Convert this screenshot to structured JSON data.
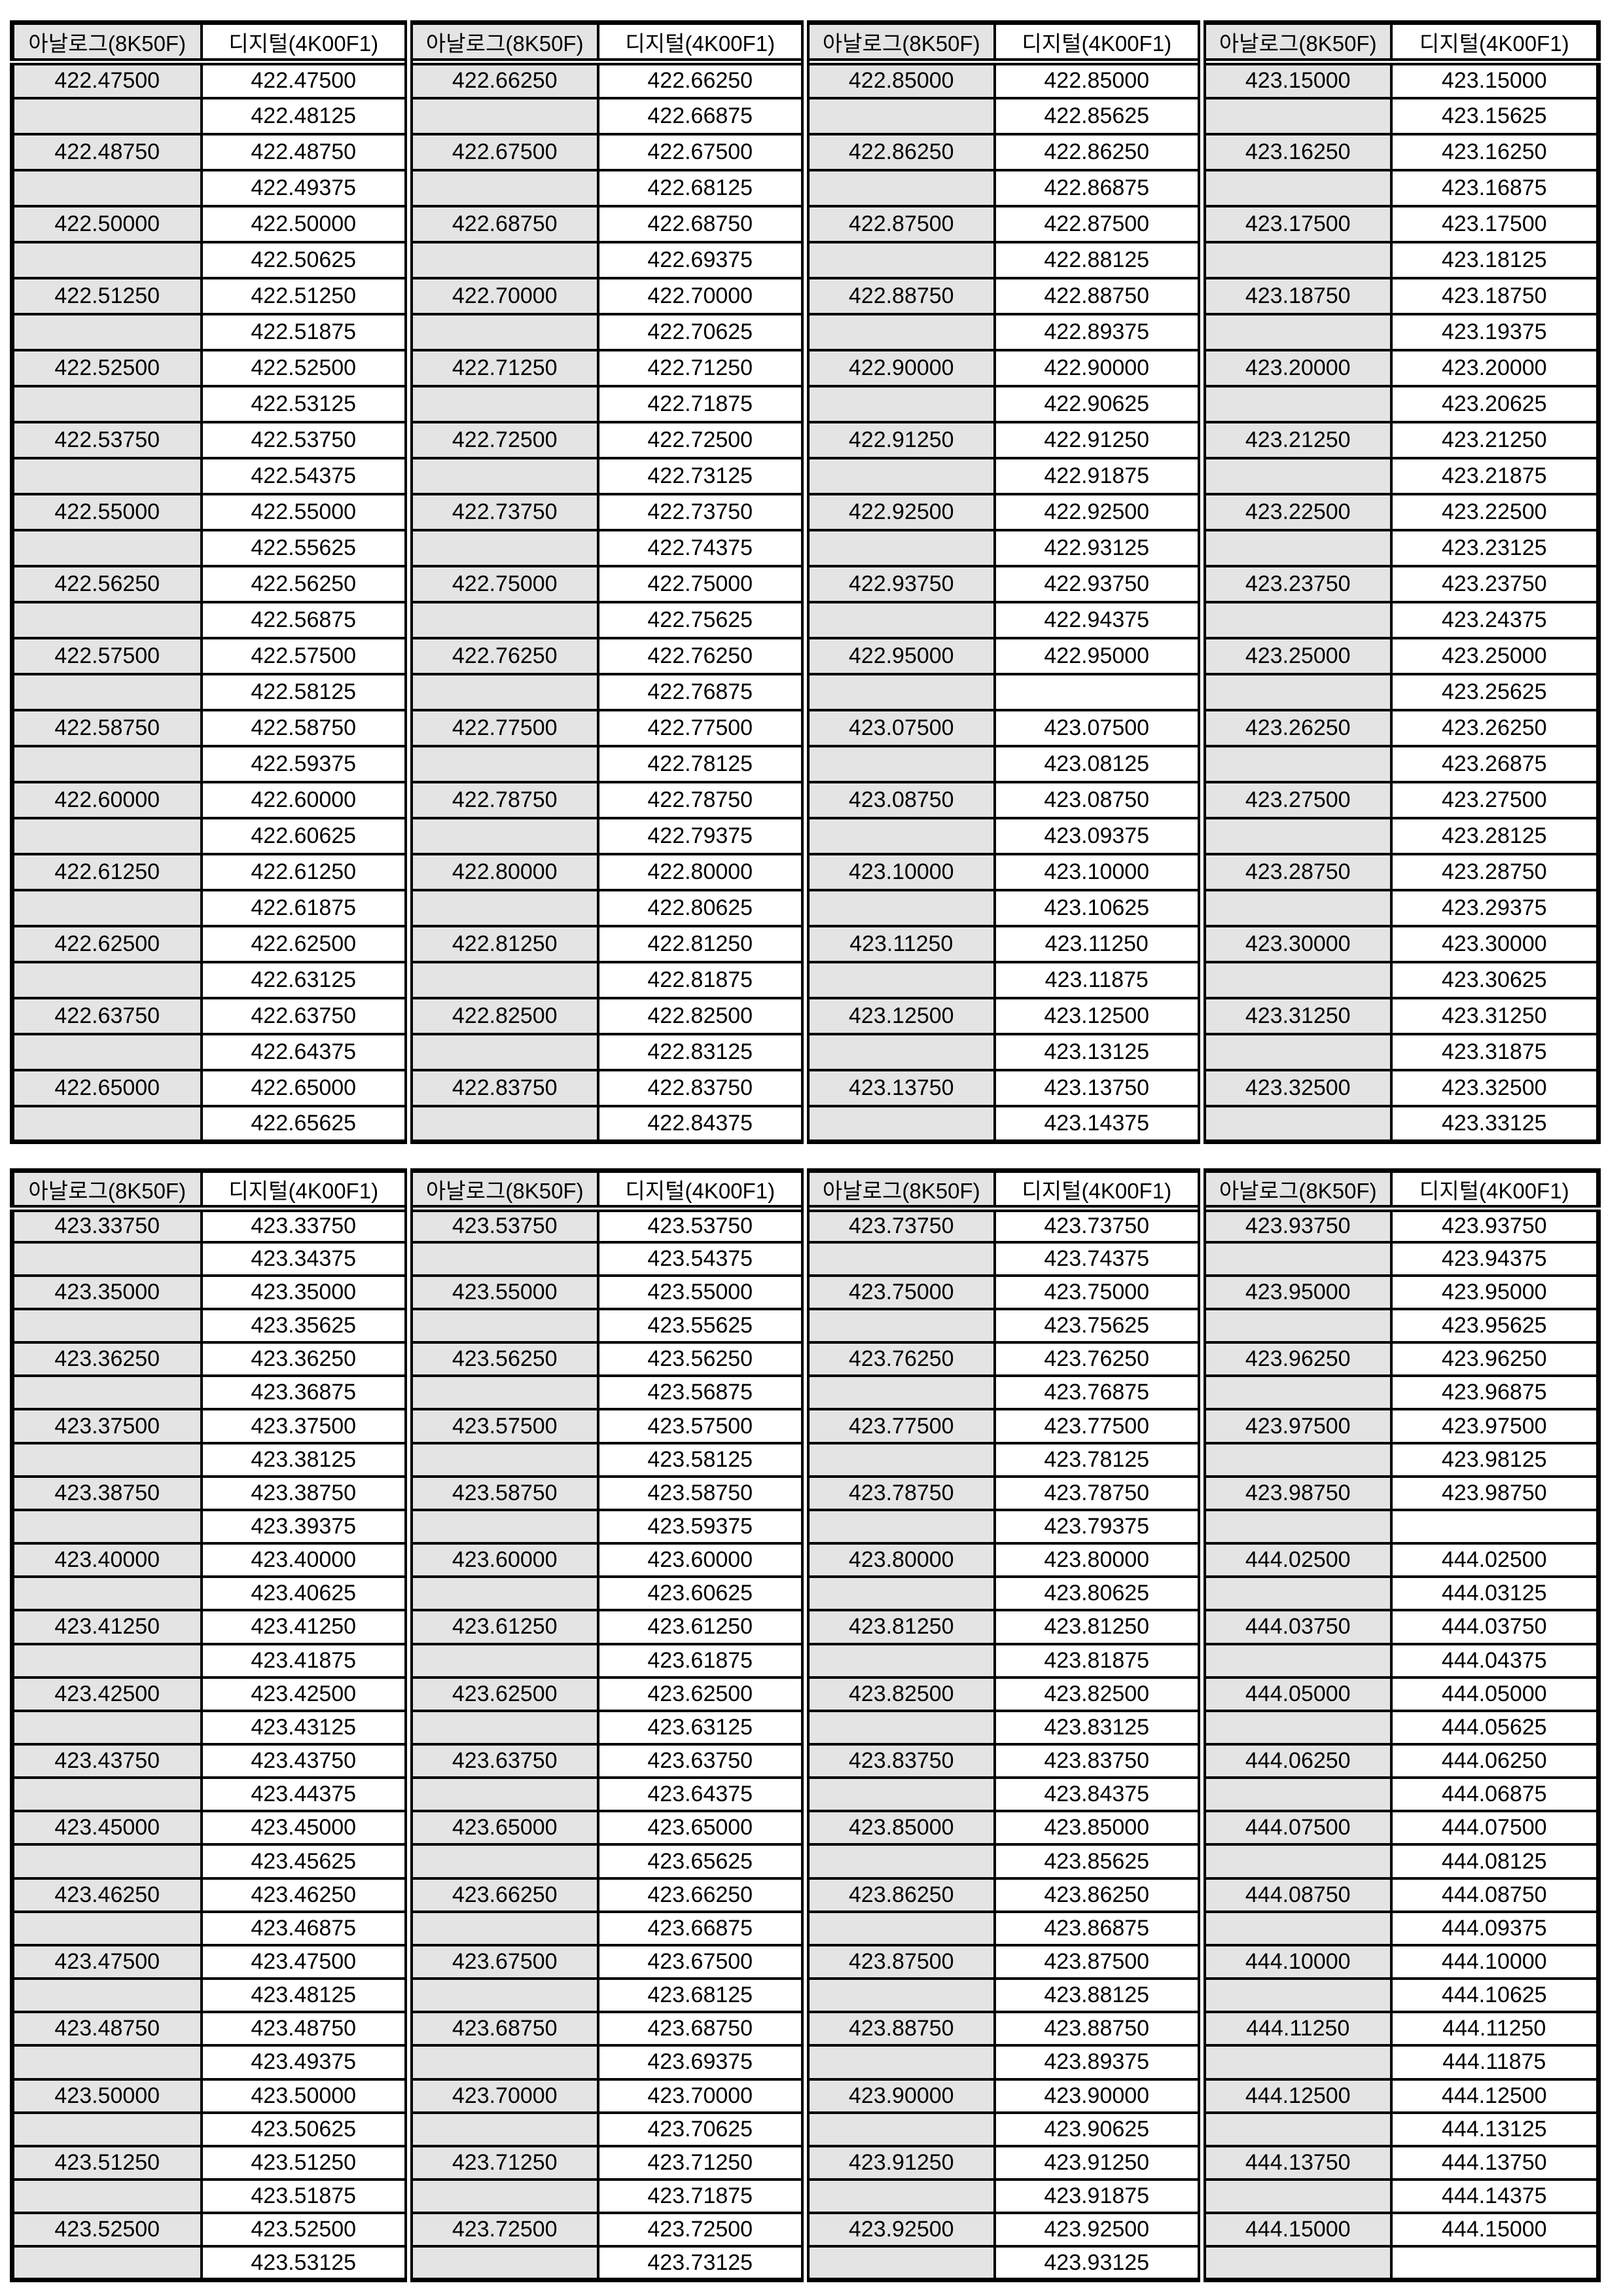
{
  "column_headers": {
    "analog": "아날로그(8K50F)",
    "digital": "디지털(4K00F1)"
  },
  "styles": {
    "analog_bg": "#e4e4e4",
    "digital_bg": "#ffffff",
    "border_color": "#000000",
    "text_color": "#000000"
  },
  "tables": [
    {
      "pairs": [
        {
          "rows": [
            [
              "422.47500",
              "422.47500"
            ],
            [
              "",
              "422.48125"
            ],
            [
              "422.48750",
              "422.48750"
            ],
            [
              "",
              "422.49375"
            ],
            [
              "422.50000",
              "422.50000"
            ],
            [
              "",
              "422.50625"
            ],
            [
              "422.51250",
              "422.51250"
            ],
            [
              "",
              "422.51875"
            ],
            [
              "422.52500",
              "422.52500"
            ],
            [
              "",
              "422.53125"
            ],
            [
              "422.53750",
              "422.53750"
            ],
            [
              "",
              "422.54375"
            ],
            [
              "422.55000",
              "422.55000"
            ],
            [
              "",
              "422.55625"
            ],
            [
              "422.56250",
              "422.56250"
            ],
            [
              "",
              "422.56875"
            ],
            [
              "422.57500",
              "422.57500"
            ],
            [
              "",
              "422.58125"
            ],
            [
              "422.58750",
              "422.58750"
            ],
            [
              "",
              "422.59375"
            ],
            [
              "422.60000",
              "422.60000"
            ],
            [
              "",
              "422.60625"
            ],
            [
              "422.61250",
              "422.61250"
            ],
            [
              "",
              "422.61875"
            ],
            [
              "422.62500",
              "422.62500"
            ],
            [
              "",
              "422.63125"
            ],
            [
              "422.63750",
              "422.63750"
            ],
            [
              "",
              "422.64375"
            ],
            [
              "422.65000",
              "422.65000"
            ],
            [
              "",
              "422.65625"
            ]
          ]
        },
        {
          "rows": [
            [
              "422.66250",
              "422.66250"
            ],
            [
              "",
              "422.66875"
            ],
            [
              "422.67500",
              "422.67500"
            ],
            [
              "",
              "422.68125"
            ],
            [
              "422.68750",
              "422.68750"
            ],
            [
              "",
              "422.69375"
            ],
            [
              "422.70000",
              "422.70000"
            ],
            [
              "",
              "422.70625"
            ],
            [
              "422.71250",
              "422.71250"
            ],
            [
              "",
              "422.71875"
            ],
            [
              "422.72500",
              "422.72500"
            ],
            [
              "",
              "422.73125"
            ],
            [
              "422.73750",
              "422.73750"
            ],
            [
              "",
              "422.74375"
            ],
            [
              "422.75000",
              "422.75000"
            ],
            [
              "",
              "422.75625"
            ],
            [
              "422.76250",
              "422.76250"
            ],
            [
              "",
              "422.76875"
            ],
            [
              "422.77500",
              "422.77500"
            ],
            [
              "",
              "422.78125"
            ],
            [
              "422.78750",
              "422.78750"
            ],
            [
              "",
              "422.79375"
            ],
            [
              "422.80000",
              "422.80000"
            ],
            [
              "",
              "422.80625"
            ],
            [
              "422.81250",
              "422.81250"
            ],
            [
              "",
              "422.81875"
            ],
            [
              "422.82500",
              "422.82500"
            ],
            [
              "",
              "422.83125"
            ],
            [
              "422.83750",
              "422.83750"
            ],
            [
              "",
              "422.84375"
            ]
          ]
        },
        {
          "rows": [
            [
              "422.85000",
              "422.85000"
            ],
            [
              "",
              "422.85625"
            ],
            [
              "422.86250",
              "422.86250"
            ],
            [
              "",
              "422.86875"
            ],
            [
              "422.87500",
              "422.87500"
            ],
            [
              "",
              "422.88125"
            ],
            [
              "422.88750",
              "422.88750"
            ],
            [
              "",
              "422.89375"
            ],
            [
              "422.90000",
              "422.90000"
            ],
            [
              "",
              "422.90625"
            ],
            [
              "422.91250",
              "422.91250"
            ],
            [
              "",
              "422.91875"
            ],
            [
              "422.92500",
              "422.92500"
            ],
            [
              "",
              "422.93125"
            ],
            [
              "422.93750",
              "422.93750"
            ],
            [
              "",
              "422.94375"
            ],
            [
              "422.95000",
              "422.95000"
            ],
            [
              "",
              ""
            ],
            [
              "423.07500",
              "423.07500"
            ],
            [
              "",
              "423.08125"
            ],
            [
              "423.08750",
              "423.08750"
            ],
            [
              "",
              "423.09375"
            ],
            [
              "423.10000",
              "423.10000"
            ],
            [
              "",
              "423.10625"
            ],
            [
              "423.11250",
              "423.11250"
            ],
            [
              "",
              "423.11875"
            ],
            [
              "423.12500",
              "423.12500"
            ],
            [
              "",
              "423.13125"
            ],
            [
              "423.13750",
              "423.13750"
            ],
            [
              "",
              "423.14375"
            ]
          ]
        },
        {
          "rows": [
            [
              "423.15000",
              "423.15000"
            ],
            [
              "",
              "423.15625"
            ],
            [
              "423.16250",
              "423.16250"
            ],
            [
              "",
              "423.16875"
            ],
            [
              "423.17500",
              "423.17500"
            ],
            [
              "",
              "423.18125"
            ],
            [
              "423.18750",
              "423.18750"
            ],
            [
              "",
              "423.19375"
            ],
            [
              "423.20000",
              "423.20000"
            ],
            [
              "",
              "423.20625"
            ],
            [
              "423.21250",
              "423.21250"
            ],
            [
              "",
              "423.21875"
            ],
            [
              "423.22500",
              "423.22500"
            ],
            [
              "",
              "423.23125"
            ],
            [
              "423.23750",
              "423.23750"
            ],
            [
              "",
              "423.24375"
            ],
            [
              "423.25000",
              "423.25000"
            ],
            [
              "",
              "423.25625"
            ],
            [
              "423.26250",
              "423.26250"
            ],
            [
              "",
              "423.26875"
            ],
            [
              "423.27500",
              "423.27500"
            ],
            [
              "",
              "423.28125"
            ],
            [
              "423.28750",
              "423.28750"
            ],
            [
              "",
              "423.29375"
            ],
            [
              "423.30000",
              "423.30000"
            ],
            [
              "",
              "423.30625"
            ],
            [
              "423.31250",
              "423.31250"
            ],
            [
              "",
              "423.31875"
            ],
            [
              "423.32500",
              "423.32500"
            ],
            [
              "",
              "423.33125"
            ]
          ]
        }
      ]
    },
    {
      "pairs": [
        {
          "rows": [
            [
              "423.33750",
              "423.33750"
            ],
            [
              "",
              "423.34375"
            ],
            [
              "423.35000",
              "423.35000"
            ],
            [
              "",
              "423.35625"
            ],
            [
              "423.36250",
              "423.36250"
            ],
            [
              "",
              "423.36875"
            ],
            [
              "423.37500",
              "423.37500"
            ],
            [
              "",
              "423.38125"
            ],
            [
              "423.38750",
              "423.38750"
            ],
            [
              "",
              "423.39375"
            ],
            [
              "423.40000",
              "423.40000"
            ],
            [
              "",
              "423.40625"
            ],
            [
              "423.41250",
              "423.41250"
            ],
            [
              "",
              "423.41875"
            ],
            [
              "423.42500",
              "423.42500"
            ],
            [
              "",
              "423.43125"
            ],
            [
              "423.43750",
              "423.43750"
            ],
            [
              "",
              "423.44375"
            ],
            [
              "423.45000",
              "423.45000"
            ],
            [
              "",
              "423.45625"
            ],
            [
              "423.46250",
              "423.46250"
            ],
            [
              "",
              "423.46875"
            ],
            [
              "423.47500",
              "423.47500"
            ],
            [
              "",
              "423.48125"
            ],
            [
              "423.48750",
              "423.48750"
            ],
            [
              "",
              "423.49375"
            ],
            [
              "423.50000",
              "423.50000"
            ],
            [
              "",
              "423.50625"
            ],
            [
              "423.51250",
              "423.51250"
            ],
            [
              "",
              "423.51875"
            ],
            [
              "423.52500",
              "423.52500"
            ],
            [
              "",
              "423.53125"
            ]
          ]
        },
        {
          "rows": [
            [
              "423.53750",
              "423.53750"
            ],
            [
              "",
              "423.54375"
            ],
            [
              "423.55000",
              "423.55000"
            ],
            [
              "",
              "423.55625"
            ],
            [
              "423.56250",
              "423.56250"
            ],
            [
              "",
              "423.56875"
            ],
            [
              "423.57500",
              "423.57500"
            ],
            [
              "",
              "423.58125"
            ],
            [
              "423.58750",
              "423.58750"
            ],
            [
              "",
              "423.59375"
            ],
            [
              "423.60000",
              "423.60000"
            ],
            [
              "",
              "423.60625"
            ],
            [
              "423.61250",
              "423.61250"
            ],
            [
              "",
              "423.61875"
            ],
            [
              "423.62500",
              "423.62500"
            ],
            [
              "",
              "423.63125"
            ],
            [
              "423.63750",
              "423.63750"
            ],
            [
              "",
              "423.64375"
            ],
            [
              "423.65000",
              "423.65000"
            ],
            [
              "",
              "423.65625"
            ],
            [
              "423.66250",
              "423.66250"
            ],
            [
              "",
              "423.66875"
            ],
            [
              "423.67500",
              "423.67500"
            ],
            [
              "",
              "423.68125"
            ],
            [
              "423.68750",
              "423.68750"
            ],
            [
              "",
              "423.69375"
            ],
            [
              "423.70000",
              "423.70000"
            ],
            [
              "",
              "423.70625"
            ],
            [
              "423.71250",
              "423.71250"
            ],
            [
              "",
              "423.71875"
            ],
            [
              "423.72500",
              "423.72500"
            ],
            [
              "",
              "423.73125"
            ]
          ]
        },
        {
          "rows": [
            [
              "423.73750",
              "423.73750"
            ],
            [
              "",
              "423.74375"
            ],
            [
              "423.75000",
              "423.75000"
            ],
            [
              "",
              "423.75625"
            ],
            [
              "423.76250",
              "423.76250"
            ],
            [
              "",
              "423.76875"
            ],
            [
              "423.77500",
              "423.77500"
            ],
            [
              "",
              "423.78125"
            ],
            [
              "423.78750",
              "423.78750"
            ],
            [
              "",
              "423.79375"
            ],
            [
              "423.80000",
              "423.80000"
            ],
            [
              "",
              "423.80625"
            ],
            [
              "423.81250",
              "423.81250"
            ],
            [
              "",
              "423.81875"
            ],
            [
              "423.82500",
              "423.82500"
            ],
            [
              "",
              "423.83125"
            ],
            [
              "423.83750",
              "423.83750"
            ],
            [
              "",
              "423.84375"
            ],
            [
              "423.85000",
              "423.85000"
            ],
            [
              "",
              "423.85625"
            ],
            [
              "423.86250",
              "423.86250"
            ],
            [
              "",
              "423.86875"
            ],
            [
              "423.87500",
              "423.87500"
            ],
            [
              "",
              "423.88125"
            ],
            [
              "423.88750",
              "423.88750"
            ],
            [
              "",
              "423.89375"
            ],
            [
              "423.90000",
              "423.90000"
            ],
            [
              "",
              "423.90625"
            ],
            [
              "423.91250",
              "423.91250"
            ],
            [
              "",
              "423.91875"
            ],
            [
              "423.92500",
              "423.92500"
            ],
            [
              "",
              "423.93125"
            ]
          ]
        },
        {
          "rows": [
            [
              "423.93750",
              "423.93750"
            ],
            [
              "",
              "423.94375"
            ],
            [
              "423.95000",
              "423.95000"
            ],
            [
              "",
              "423.95625"
            ],
            [
              "423.96250",
              "423.96250"
            ],
            [
              "",
              "423.96875"
            ],
            [
              "423.97500",
              "423.97500"
            ],
            [
              "",
              "423.98125"
            ],
            [
              "423.98750",
              "423.98750"
            ],
            [
              "",
              ""
            ],
            [
              "444.02500",
              "444.02500"
            ],
            [
              "",
              "444.03125"
            ],
            [
              "444.03750",
              "444.03750"
            ],
            [
              "",
              "444.04375"
            ],
            [
              "444.05000",
              "444.05000"
            ],
            [
              "",
              "444.05625"
            ],
            [
              "444.06250",
              "444.06250"
            ],
            [
              "",
              "444.06875"
            ],
            [
              "444.07500",
              "444.07500"
            ],
            [
              "",
              "444.08125"
            ],
            [
              "444.08750",
              "444.08750"
            ],
            [
              "",
              "444.09375"
            ],
            [
              "444.10000",
              "444.10000"
            ],
            [
              "",
              "444.10625"
            ],
            [
              "444.11250",
              "444.11250"
            ],
            [
              "",
              "444.11875"
            ],
            [
              "444.12500",
              "444.12500"
            ],
            [
              "",
              "444.13125"
            ],
            [
              "444.13750",
              "444.13750"
            ],
            [
              "",
              "444.14375"
            ],
            [
              "444.15000",
              "444.15000"
            ],
            [
              "",
              ""
            ]
          ]
        }
      ]
    }
  ]
}
